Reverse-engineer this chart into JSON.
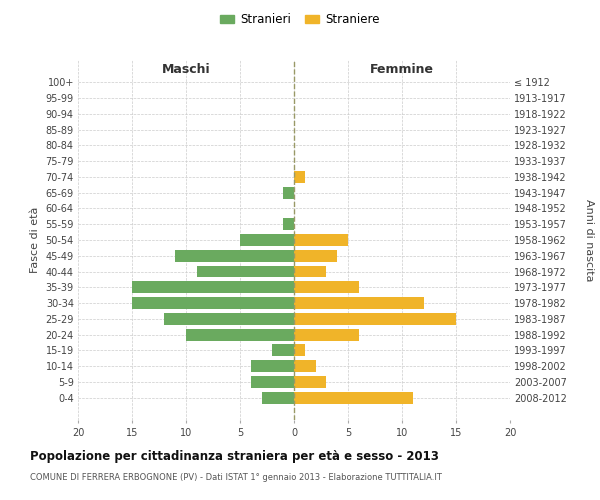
{
  "age_groups": [
    "100+",
    "95-99",
    "90-94",
    "85-89",
    "80-84",
    "75-79",
    "70-74",
    "65-69",
    "60-64",
    "55-59",
    "50-54",
    "45-49",
    "40-44",
    "35-39",
    "30-34",
    "25-29",
    "20-24",
    "15-19",
    "10-14",
    "5-9",
    "0-4"
  ],
  "birth_years": [
    "≤ 1912",
    "1913-1917",
    "1918-1922",
    "1923-1927",
    "1928-1932",
    "1933-1937",
    "1938-1942",
    "1943-1947",
    "1948-1952",
    "1953-1957",
    "1958-1962",
    "1963-1967",
    "1968-1972",
    "1973-1977",
    "1978-1982",
    "1983-1987",
    "1988-1992",
    "1993-1997",
    "1998-2002",
    "2003-2007",
    "2008-2012"
  ],
  "maschi": [
    0,
    0,
    0,
    0,
    0,
    0,
    0,
    1,
    0,
    1,
    5,
    11,
    9,
    15,
    15,
    12,
    10,
    2,
    4,
    4,
    3
  ],
  "femmine": [
    0,
    0,
    0,
    0,
    0,
    0,
    1,
    0,
    0,
    0,
    5,
    4,
    3,
    6,
    12,
    15,
    6,
    1,
    2,
    3,
    11
  ],
  "color_maschi": "#6aaa5f",
  "color_femmine": "#f0b429",
  "title": "Popolazione per cittadinanza straniera per età e sesso - 2013",
  "subtitle": "COMUNE DI FERRERA ERBOGNONE (PV) - Dati ISTAT 1° gennaio 2013 - Elaborazione TUTTITALIA.IT",
  "xlabel_left": "Maschi",
  "xlabel_right": "Femmine",
  "ylabel_left": "Fasce di età",
  "ylabel_right": "Anni di nascita",
  "legend_maschi": "Stranieri",
  "legend_femmine": "Straniere",
  "xlim": 20,
  "background_color": "#ffffff",
  "grid_color": "#cccccc"
}
